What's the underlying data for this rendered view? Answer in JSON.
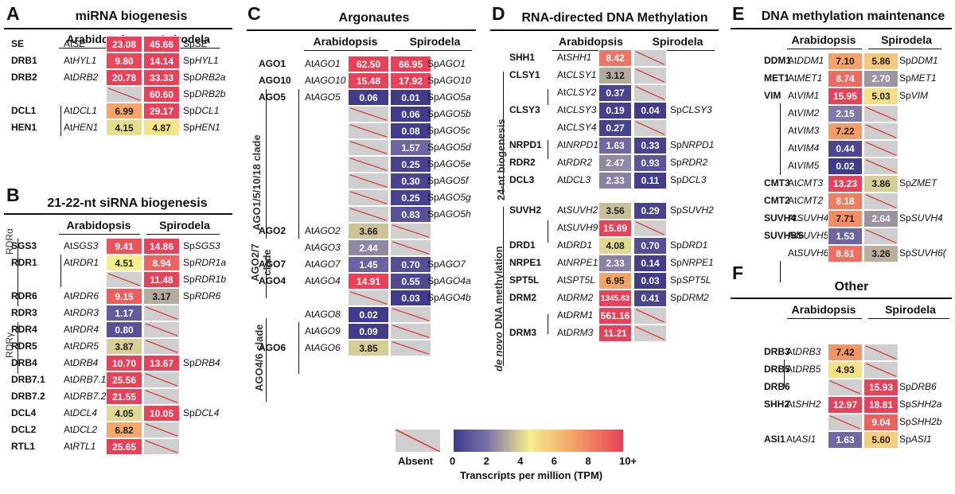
{
  "common": {
    "species_at": "Arabidopsis",
    "species_sp": "Spirodela"
  },
  "panels": {
    "A": {
      "letter": "A",
      "title": "miRNA biogenesis"
    },
    "B": {
      "letter": "B",
      "title": "21-22-nt siRNA biogenesis"
    },
    "C": {
      "letter": "C",
      "title": "Argonautes"
    },
    "D": {
      "letter": "D",
      "title": "RNA-directed DNA Methylation"
    },
    "E": {
      "letter": "E",
      "title": "DNA methylation maintenance"
    },
    "F": {
      "letter": "F",
      "title": "Other"
    }
  },
  "side_labels": {
    "rdra": "RDRα",
    "rdrg": "RDRγ",
    "ago15": "AGO1/5/10/18 clade",
    "ago27": "AGO2/7 clade",
    "ago46": "AGO4/6 clade",
    "nt24": "24-nt biogenesis",
    "denovo": "de novo DNA methylation"
  },
  "legend": {
    "absent_label": "Absent",
    "ticks": [
      "0",
      "2",
      "4",
      "6",
      "8",
      "10+"
    ],
    "title": "Transcripts per million (TPM)",
    "colors": [
      "#3f3a8a",
      "#8a82b4",
      "#f6ee8e",
      "#f0a86b",
      "#e8415a"
    ]
  },
  "chart_data": {
    "type": "heatmap",
    "title": "",
    "legend_title": "Transcripts per million (TPM)",
    "color_scale_range": [
      0,
      10
    ],
    "panels": [
      {
        "id": "A",
        "title": "miRNA biogenesis",
        "rows": [
          {
            "gene": "SE",
            "at": "AtSE",
            "at_tpm": "23.08",
            "sp": "SpSE",
            "sp_tpm": "45.66"
          },
          {
            "gene": "DRB1",
            "at": "AtHYL1",
            "at_tpm": "9.80",
            "sp": "SpHYL1",
            "sp_tpm": "14.14"
          },
          {
            "gene": "DRB2",
            "at": "AtDRB2",
            "at_tpm": "20.78",
            "sp": "SpDRB2a",
            "sp_tpm": "33.33"
          },
          {
            "gene": "",
            "at": "",
            "at_tpm": null,
            "sp": "SpDRB2b",
            "sp_tpm": "60.60"
          },
          {
            "gene": "DCL1",
            "at": "AtDCL1",
            "at_tpm": "6.99",
            "sp": "SpDCL1",
            "sp_tpm": "29.17"
          },
          {
            "gene": "HEN1",
            "at": "AtHEN1",
            "at_tpm": "4.15",
            "sp": "SpHEN1",
            "sp_tpm": "4.87"
          }
        ]
      },
      {
        "id": "B",
        "title": "21-22-nt siRNA biogenesis",
        "rows": [
          {
            "gene": "SGS3",
            "at": "AtSGS3",
            "at_tpm": "9.41",
            "sp": "SpSGS3",
            "sp_tpm": "14.86"
          },
          {
            "gene": "RDR1",
            "at": "AtRDR1",
            "at_tpm": "4.51",
            "sp": "SpRDR1a",
            "sp_tpm": "8.94"
          },
          {
            "gene": "",
            "at": "",
            "at_tpm": null,
            "sp": "SpRDR1b",
            "sp_tpm": "11.48"
          },
          {
            "gene": "RDR6",
            "at": "AtRDR6",
            "at_tpm": "9.15",
            "sp": "SpRDR6",
            "sp_tpm": "3.17"
          },
          {
            "gene": "RDR3",
            "at": "AtRDR3",
            "at_tpm": "1.17",
            "sp": "",
            "sp_tpm": null
          },
          {
            "gene": "RDR4",
            "at": "AtRDR4",
            "at_tpm": "0.80",
            "sp": "",
            "sp_tpm": null
          },
          {
            "gene": "RDR5",
            "at": "AtRDR5",
            "at_tpm": "3.87",
            "sp": "",
            "sp_tpm": null
          },
          {
            "gene": "DRB4",
            "at": "AtDRB4",
            "at_tpm": "10.70",
            "sp": "SpDRB4",
            "sp_tpm": "13.67"
          },
          {
            "gene": "DRB7.1",
            "at": "AtDRB7.1",
            "at_tpm": "25.56",
            "sp": "",
            "sp_tpm": null
          },
          {
            "gene": "DRB7.2",
            "at": "AtDRB7.2",
            "at_tpm": "21.55",
            "sp": "",
            "sp_tpm": null
          },
          {
            "gene": "DCL4",
            "at": "AtDCL4",
            "at_tpm": "4.05",
            "sp": "SpDCL4",
            "sp_tpm": "10.05"
          },
          {
            "gene": "DCL2",
            "at": "AtDCL2",
            "at_tpm": "6.82",
            "sp": "",
            "sp_tpm": null
          },
          {
            "gene": "RTL1",
            "at": "AtRTL1",
            "at_tpm": "25.65",
            "sp": "",
            "sp_tpm": null
          }
        ]
      },
      {
        "id": "C",
        "title": "Argonautes",
        "rows": [
          {
            "gene": "AGO1",
            "at": "AtAGO1",
            "at_tpm": "62.50",
            "sp": "SpAGO1",
            "sp_tpm": "66.95"
          },
          {
            "gene": "AGO10",
            "at": "AtAGO10",
            "at_tpm": "15.48",
            "sp": "SpAGO10",
            "sp_tpm": "17.92"
          },
          {
            "gene": "AGO5",
            "at": "AtAGO5",
            "at_tpm": "0.06",
            "sp": "SpAGO5a",
            "sp_tpm": "0.01"
          },
          {
            "gene": "",
            "at": "",
            "at_tpm": null,
            "sp": "SpAGO5b",
            "sp_tpm": "0.06"
          },
          {
            "gene": "",
            "at": "",
            "at_tpm": null,
            "sp": "SpAGO5c",
            "sp_tpm": "0.08"
          },
          {
            "gene": "",
            "at": "",
            "at_tpm": null,
            "sp": "SpAGO5d",
            "sp_tpm": "1.57"
          },
          {
            "gene": "",
            "at": "",
            "at_tpm": null,
            "sp": "SpAGO5e",
            "sp_tpm": "0.25"
          },
          {
            "gene": "",
            "at": "",
            "at_tpm": null,
            "sp": "SpAGO5f",
            "sp_tpm": "0.30"
          },
          {
            "gene": "",
            "at": "",
            "at_tpm": null,
            "sp": "SpAGO5g",
            "sp_tpm": "0.25"
          },
          {
            "gene": "",
            "at": "",
            "at_tpm": null,
            "sp": "SpAGO5h",
            "sp_tpm": "0.83"
          },
          {
            "gene": "AGO2",
            "at": "AtAGO2",
            "at_tpm": "3.66",
            "sp": "",
            "sp_tpm": null
          },
          {
            "gene": "",
            "at": "AtAGO3",
            "at_tpm": "2.44",
            "sp": "",
            "sp_tpm": null
          },
          {
            "gene": "AGO7",
            "at": "AtAGO7",
            "at_tpm": "1.45",
            "sp": "SpAGO7",
            "sp_tpm": "0.70"
          },
          {
            "gene": "AGO4",
            "at": "AtAGO4",
            "at_tpm": "14.91",
            "sp": "SpAGO4a",
            "sp_tpm": "0.55"
          },
          {
            "gene": "",
            "at": "",
            "at_tpm": null,
            "sp": "SpAGO4b",
            "sp_tpm": "0.03"
          },
          {
            "gene": "",
            "at": "AtAGO8",
            "at_tpm": "0.02",
            "sp": "",
            "sp_tpm": null
          },
          {
            "gene": "",
            "at": "AtAGO9",
            "at_tpm": "0.09",
            "sp": "",
            "sp_tpm": null
          },
          {
            "gene": "AGO6",
            "at": "AtAGO6",
            "at_tpm": "3.85",
            "sp": "",
            "sp_tpm": null
          }
        ]
      },
      {
        "id": "D",
        "title": "RNA-directed DNA Methylation",
        "rows": [
          {
            "gene": "SHH1",
            "at": "AtSHH1",
            "at_tpm": "8.42",
            "sp": "",
            "sp_tpm": null
          },
          {
            "gene": "CLSY1",
            "at": "AtCLSY1",
            "at_tpm": "3.12",
            "sp": "",
            "sp_tpm": null
          },
          {
            "gene": "",
            "at": "AtCLSY2",
            "at_tpm": "0.37",
            "sp": "",
            "sp_tpm": null
          },
          {
            "gene": "CLSY3",
            "at": "AtCLSY3",
            "at_tpm": "0.19",
            "sp": "SpCLSY3",
            "sp_tpm": "0.04"
          },
          {
            "gene": "",
            "at": "AtCLSY4",
            "at_tpm": "0.27",
            "sp": "",
            "sp_tpm": null
          },
          {
            "gene": "NRPD1",
            "at": "AtNRPD1",
            "at_tpm": "1.63",
            "sp": "SpNRPD1",
            "sp_tpm": "0.33"
          },
          {
            "gene": "RDR2",
            "at": "AtRDR2",
            "at_tpm": "2.47",
            "sp": "SpRDR2",
            "sp_tpm": "0.93"
          },
          {
            "gene": "DCL3",
            "at": "AtDCL3",
            "at_tpm": "2.33",
            "sp": "SpDCL3",
            "sp_tpm": "0.11"
          },
          {
            "gene": "SUVH2",
            "at": "AtSUVH2",
            "at_tpm": "3.56",
            "sp": "SpSUVH2",
            "sp_tpm": "0.29"
          },
          {
            "gene": "",
            "at": "AtSUVH9",
            "at_tpm": "15.89",
            "sp": "",
            "sp_tpm": null
          },
          {
            "gene": "DRD1",
            "at": "AtDRD1",
            "at_tpm": "4.08",
            "sp": "SpDRD1",
            "sp_tpm": "0.70"
          },
          {
            "gene": "NRPE1",
            "at": "AtNRPE1",
            "at_tpm": "2.33",
            "sp": "SpNRPE1",
            "sp_tpm": "0.14"
          },
          {
            "gene": "SPT5L",
            "at": "AtSPT5L",
            "at_tpm": "6.95",
            "sp": "SpSPT5L",
            "sp_tpm": "0.03"
          },
          {
            "gene": "DRM2",
            "at": "AtDRM2",
            "at_tpm": "1345.83",
            "sp": "SpDRM2",
            "sp_tpm": "0.41"
          },
          {
            "gene": "",
            "at": "AtDRM1",
            "at_tpm": "561.16",
            "sp": "",
            "sp_tpm": null
          },
          {
            "gene": "DRM3",
            "at": "AtDRM3",
            "at_tpm": "11.21",
            "sp": "",
            "sp_tpm": null
          }
        ]
      },
      {
        "id": "E",
        "title": "DNA methylation maintenance",
        "rows": [
          {
            "gene": "DDM1",
            "at": "AtDDM1",
            "at_tpm": "7.10",
            "sp": "SpDDM1",
            "sp_tpm": "5.86"
          },
          {
            "gene": "MET1",
            "at": "AtMET1",
            "at_tpm": "8.74",
            "sp": "SpMET1",
            "sp_tpm": "2.70"
          },
          {
            "gene": "VIM",
            "at": "AtVIM1",
            "at_tpm": "15.95",
            "sp": "SpVIM",
            "sp_tpm": "5.03"
          },
          {
            "gene": "",
            "at": "AtVIM2",
            "at_tpm": "2.15",
            "sp": "",
            "sp_tpm": null
          },
          {
            "gene": "",
            "at": "AtVIM3",
            "at_tpm": "7.22",
            "sp": "",
            "sp_tpm": null
          },
          {
            "gene": "",
            "at": "AtVIM4",
            "at_tpm": "0.44",
            "sp": "",
            "sp_tpm": null
          },
          {
            "gene": "",
            "at": "AtVIM5",
            "at_tpm": "0.02",
            "sp": "",
            "sp_tpm": null
          },
          {
            "gene": "CMT3",
            "at": "AtCMT3",
            "at_tpm": "13.23",
            "sp": "SpZMET",
            "sp_tpm": "3.86"
          },
          {
            "gene": "CMT2",
            "at": "AtCMT2",
            "at_tpm": "8.18",
            "sp": "",
            "sp_tpm": null
          },
          {
            "gene": "SUVH4",
            "at": "AtSUVH4",
            "at_tpm": "7.71",
            "sp": "SpSUVH4",
            "sp_tpm": "2.64"
          },
          {
            "gene": "SUVH5/6",
            "at": "AtSUVH5",
            "at_tpm": "1.53",
            "sp": "",
            "sp_tpm": null
          },
          {
            "gene": "",
            "at": "AtSUVH6",
            "at_tpm": "8.61",
            "sp": "SpSUVH6(",
            "sp_tpm": "3.26"
          }
        ]
      },
      {
        "id": "F",
        "title": "Other",
        "rows": [
          {
            "gene": "DRB3",
            "at": "AtDRB3",
            "at_tpm": "7.42",
            "sp": "",
            "sp_tpm": null
          },
          {
            "gene": "DRB5",
            "at": "AtDRB5",
            "at_tpm": "4.93",
            "sp": "",
            "sp_tpm": null
          },
          {
            "gene": "DRB6",
            "at": "",
            "at_tpm": null,
            "sp": "SpDRB6",
            "sp_tpm": "15.93"
          },
          {
            "gene": "SHH2",
            "at": "AtSHH2",
            "at_tpm": "12.97",
            "sp": "SpSHH2a",
            "sp_tpm": "18.81"
          },
          {
            "gene": "",
            "at": "",
            "at_tpm": null,
            "sp": "SpSHH2b",
            "sp_tpm": "9.04"
          },
          {
            "gene": "ASI1",
            "at": "AtASI1",
            "at_tpm": "1.63",
            "sp": "SpASI1",
            "sp_tpm": "5.60"
          }
        ]
      }
    ]
  }
}
